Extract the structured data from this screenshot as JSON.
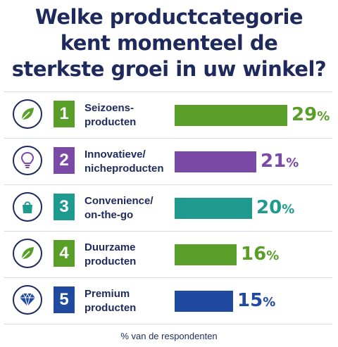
{
  "title_lines": [
    "Welke productcategorie",
    "kent momenteel de",
    "sterkste groei in uw winkel?"
  ],
  "footnote": "% van de respondenten",
  "chart_data": {
    "type": "bar",
    "orientation": "horizontal",
    "title": "Welke productcategorie kent momenteel de sterkste groei in uw winkel?",
    "xlabel": "% van de respondenten",
    "xlim": [
      0,
      29
    ],
    "categories": [
      "Seizoensproducten",
      "Innovatieve/nicheproducten",
      "Convenience/on-the-go",
      "Duurzame producten",
      "Premium producten"
    ],
    "values": [
      29,
      21,
      20,
      16,
      15
    ],
    "rows": [
      {
        "rank": "1",
        "line1": "Seizoens-",
        "line2": "producten",
        "value": 29,
        "value_text": "29",
        "unit": "%",
        "color": "#5a9e2a",
        "icon": "leaf-icon"
      },
      {
        "rank": "2",
        "line1": "Innovatieve/",
        "line2": "nicheproducten",
        "value": 21,
        "value_text": "21",
        "unit": "%",
        "color": "#7b4aa6",
        "icon": "lightbulb-icon"
      },
      {
        "rank": "3",
        "line1": "Convenience/",
        "line2": "on-the-go",
        "value": 20,
        "value_text": "20",
        "unit": "%",
        "color": "#1f9a8f",
        "icon": "shopping-bag-icon"
      },
      {
        "rank": "4",
        "line1": "Duurzame",
        "line2": "producten",
        "value": 16,
        "value_text": "16",
        "unit": "%",
        "color": "#5a9e2a",
        "icon": "leaf-icon"
      },
      {
        "rank": "5",
        "line1": "Premium",
        "line2": "producten",
        "value": 15,
        "value_text": "15",
        "unit": "%",
        "color": "#1f4aa0",
        "icon": "diamond-icon"
      }
    ]
  }
}
